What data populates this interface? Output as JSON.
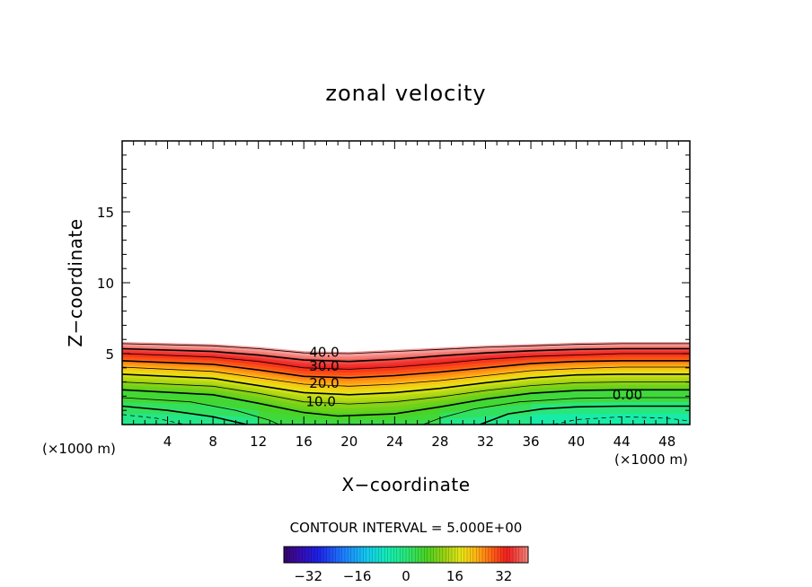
{
  "chart_data": {
    "type": "heatmap",
    "title": "zonal velocity",
    "xlabel": "X−coordinate",
    "ylabel": "Z−coordinate",
    "x_unit": "(×1000 m)",
    "z_unit": "(×1000 m)",
    "xlim": [
      0,
      50
    ],
    "ylim": [
      0,
      20
    ],
    "x_ticks": [
      "4",
      "8",
      "12",
      "16",
      "20",
      "24",
      "28",
      "32",
      "36",
      "40",
      "44",
      "48"
    ],
    "y_ticks": [
      "5",
      "10",
      "15"
    ],
    "contour_interval_text": "CONTOUR INTERVAL = 5.000E+00",
    "contour_labels": [
      {
        "text": "40.0",
        "x": 17.8,
        "z": 5.1
      },
      {
        "text": "30.0",
        "x": 17.8,
        "z": 4.1
      },
      {
        "text": "20.0",
        "x": 17.8,
        "z": 2.9
      },
      {
        "text": "10.0",
        "x": 17.5,
        "z": 1.6
      },
      {
        "text": "0.00",
        "x": 44.5,
        "z": 2.1
      }
    ],
    "contours": [
      {
        "value": 45,
        "points": [
          [
            0,
            5.7
          ],
          [
            8,
            5.55
          ],
          [
            12,
            5.35
          ],
          [
            16,
            5.05
          ],
          [
            20,
            5.0
          ],
          [
            24,
            5.15
          ],
          [
            28,
            5.3
          ],
          [
            32,
            5.45
          ],
          [
            36,
            5.55
          ],
          [
            40,
            5.65
          ],
          [
            44,
            5.7
          ],
          [
            50,
            5.7
          ]
        ]
      },
      {
        "value": 40,
        "points": [
          [
            0,
            5.35
          ],
          [
            8,
            5.15
          ],
          [
            12,
            4.9
          ],
          [
            16,
            4.55
          ],
          [
            20,
            4.45
          ],
          [
            24,
            4.6
          ],
          [
            28,
            4.85
          ],
          [
            32,
            5.05
          ],
          [
            36,
            5.2
          ],
          [
            40,
            5.3
          ],
          [
            44,
            5.35
          ],
          [
            50,
            5.35
          ]
        ]
      },
      {
        "value": 35,
        "points": [
          [
            0,
            5.0
          ],
          [
            8,
            4.75
          ],
          [
            12,
            4.45
          ],
          [
            16,
            4.0
          ],
          [
            20,
            3.9
          ],
          [
            24,
            4.05
          ],
          [
            28,
            4.3
          ],
          [
            32,
            4.6
          ],
          [
            36,
            4.8
          ],
          [
            40,
            4.9
          ],
          [
            44,
            5.0
          ],
          [
            50,
            5.0
          ]
        ]
      },
      {
        "value": 30,
        "points": [
          [
            0,
            4.5
          ],
          [
            8,
            4.25
          ],
          [
            12,
            3.85
          ],
          [
            16,
            3.4
          ],
          [
            20,
            3.3
          ],
          [
            24,
            3.45
          ],
          [
            28,
            3.7
          ],
          [
            32,
            4.0
          ],
          [
            36,
            4.3
          ],
          [
            40,
            4.45
          ],
          [
            44,
            4.5
          ],
          [
            50,
            4.5
          ]
        ]
      },
      {
        "value": 25,
        "points": [
          [
            0,
            4.05
          ],
          [
            8,
            3.75
          ],
          [
            12,
            3.3
          ],
          [
            16,
            2.85
          ],
          [
            20,
            2.7
          ],
          [
            24,
            2.85
          ],
          [
            28,
            3.1
          ],
          [
            32,
            3.45
          ],
          [
            36,
            3.8
          ],
          [
            40,
            3.95
          ],
          [
            44,
            4.05
          ],
          [
            50,
            4.05
          ]
        ]
      },
      {
        "value": 20,
        "points": [
          [
            0,
            3.55
          ],
          [
            8,
            3.25
          ],
          [
            12,
            2.75
          ],
          [
            16,
            2.25
          ],
          [
            20,
            2.1
          ],
          [
            24,
            2.25
          ],
          [
            28,
            2.55
          ],
          [
            32,
            2.95
          ],
          [
            36,
            3.3
          ],
          [
            40,
            3.5
          ],
          [
            44,
            3.55
          ],
          [
            50,
            3.55
          ]
        ]
      },
      {
        "value": 15,
        "points": [
          [
            0,
            3.0
          ],
          [
            8,
            2.7
          ],
          [
            12,
            2.2
          ],
          [
            16,
            1.6
          ],
          [
            20,
            1.45
          ],
          [
            24,
            1.6
          ],
          [
            28,
            1.95
          ],
          [
            32,
            2.4
          ],
          [
            36,
            2.75
          ],
          [
            40,
            2.95
          ],
          [
            44,
            3.0
          ],
          [
            50,
            3.0
          ]
        ]
      },
      {
        "value": 10,
        "points": [
          [
            0,
            2.45
          ],
          [
            8,
            2.1
          ],
          [
            12,
            1.5
          ],
          [
            16,
            0.85
          ],
          [
            19,
            0.6
          ],
          [
            24,
            0.75
          ],
          [
            28,
            1.25
          ],
          [
            32,
            1.8
          ],
          [
            36,
            2.2
          ],
          [
            40,
            2.4
          ],
          [
            44,
            2.45
          ],
          [
            50,
            2.45
          ]
        ]
      },
      {
        "value": 5,
        "points": [
          [
            0,
            1.9
          ],
          [
            6,
            1.6
          ],
          [
            10,
            1.0
          ],
          [
            13,
            0.3
          ],
          [
            13.8,
            0
          ]
        ]
      },
      {
        "value": 5,
        "points": [
          [
            26.5,
            0
          ],
          [
            28,
            0.45
          ],
          [
            31,
            1.1
          ],
          [
            35,
            1.6
          ],
          [
            40,
            1.85
          ],
          [
            44,
            1.9
          ],
          [
            50,
            1.9
          ]
        ]
      },
      {
        "value": 0,
        "points": [
          [
            0,
            1.3
          ],
          [
            4,
            1.0
          ],
          [
            8,
            0.55
          ],
          [
            11,
            0
          ]
        ]
      },
      {
        "value": 0,
        "points": [
          [
            31.5,
            0
          ],
          [
            34,
            0.75
          ],
          [
            37,
            1.1
          ],
          [
            40,
            1.25
          ],
          [
            44,
            1.3
          ],
          [
            50,
            1.3
          ]
        ]
      },
      {
        "value": -5,
        "points": [
          [
            0,
            0.7
          ],
          [
            3,
            0.45
          ],
          [
            5.5,
            0
          ]
        ]
      },
      {
        "value": -5,
        "points": [
          [
            38,
            0
          ],
          [
            40,
            0.35
          ],
          [
            44,
            0.55
          ],
          [
            48,
            0.45
          ],
          [
            50,
            0.25
          ]
        ]
      }
    ],
    "colorbar": {
      "min": -40,
      "max": 40,
      "ticks": [
        {
          "label": "−32",
          "value": -32
        },
        {
          "label": "−16",
          "value": -16
        },
        {
          "label": "0",
          "value": 0
        },
        {
          "label": "16",
          "value": 16
        },
        {
          "label": "32",
          "value": 32
        }
      ]
    },
    "colormap": [
      {
        "v": -40,
        "color": "#2a0040"
      },
      {
        "v": -33,
        "color": "#3a0aa0"
      },
      {
        "v": -26,
        "color": "#1e1ee6"
      },
      {
        "v": -18,
        "color": "#1e78ff"
      },
      {
        "v": -10,
        "color": "#14c8f0"
      },
      {
        "v": -3,
        "color": "#14ecb4"
      },
      {
        "v": 3,
        "color": "#28e67a"
      },
      {
        "v": 10,
        "color": "#4cd21e"
      },
      {
        "v": 16,
        "color": "#a0d214"
      },
      {
        "v": 21,
        "color": "#e6e614"
      },
      {
        "v": 26,
        "color": "#ffb414"
      },
      {
        "v": 31,
        "color": "#ff6414"
      },
      {
        "v": 36,
        "color": "#f01e1e"
      },
      {
        "v": 41,
        "color": "#f0645a"
      },
      {
        "v": 45,
        "color": "#f7aaaa"
      }
    ]
  }
}
